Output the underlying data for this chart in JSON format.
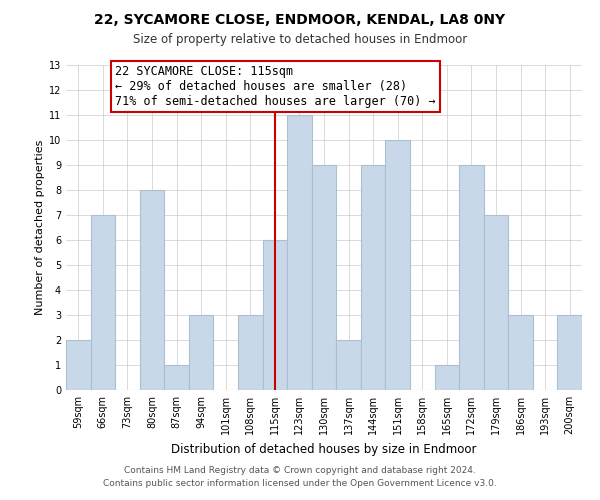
{
  "title": "22, SYCAMORE CLOSE, ENDMOOR, KENDAL, LA8 0NY",
  "subtitle": "Size of property relative to detached houses in Endmoor",
  "xlabel": "Distribution of detached houses by size in Endmoor",
  "ylabel": "Number of detached properties",
  "bar_labels": [
    "59sqm",
    "66sqm",
    "73sqm",
    "80sqm",
    "87sqm",
    "94sqm",
    "101sqm",
    "108sqm",
    "115sqm",
    "123sqm",
    "130sqm",
    "137sqm",
    "144sqm",
    "151sqm",
    "158sqm",
    "165sqm",
    "172sqm",
    "179sqm",
    "186sqm",
    "193sqm",
    "200sqm"
  ],
  "bar_values": [
    2,
    7,
    0,
    8,
    1,
    3,
    0,
    3,
    6,
    11,
    9,
    2,
    9,
    10,
    0,
    1,
    9,
    7,
    3,
    0,
    3
  ],
  "bar_color": "#c8d8e8",
  "bar_edge_color": "#a8c0d0",
  "highlight_index": 8,
  "highlight_line_color": "#cc0000",
  "annotation_title": "22 SYCAMORE CLOSE: 115sqm",
  "annotation_line1": "← 29% of detached houses are smaller (28)",
  "annotation_line2": "71% of semi-detached houses are larger (70) →",
  "annotation_box_color": "#ffffff",
  "annotation_box_edge_color": "#cc0000",
  "ylim": [
    0,
    13
  ],
  "yticks": [
    0,
    1,
    2,
    3,
    4,
    5,
    6,
    7,
    8,
    9,
    10,
    11,
    12,
    13
  ],
  "footer_line1": "Contains HM Land Registry data © Crown copyright and database right 2024.",
  "footer_line2": "Contains public sector information licensed under the Open Government Licence v3.0.",
  "background_color": "#ffffff",
  "title_fontsize": 10,
  "subtitle_fontsize": 8.5,
  "tick_fontsize": 7,
  "ylabel_fontsize": 8,
  "xlabel_fontsize": 8.5,
  "footer_fontsize": 6.5,
  "ann_fontsize": 8.5
}
